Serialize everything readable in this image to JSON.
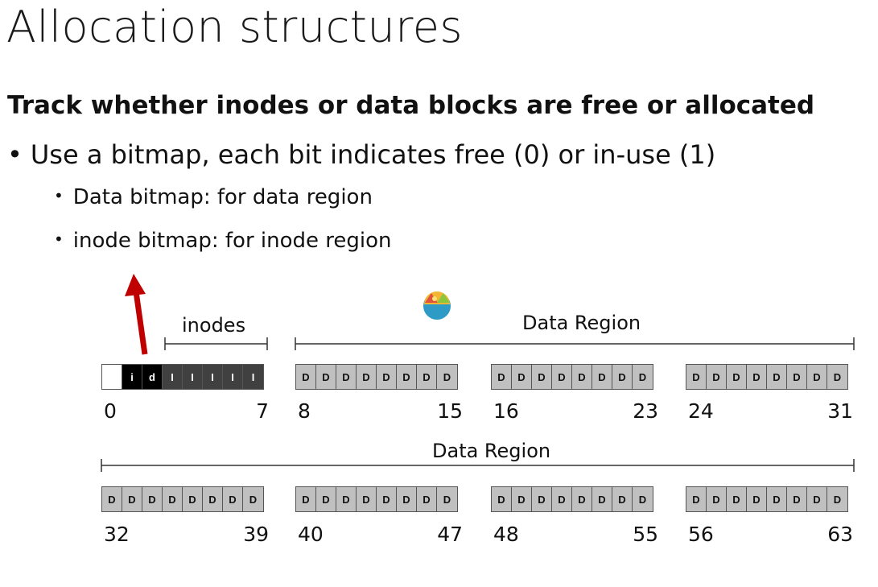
{
  "slide": {
    "title": "Allocation structures",
    "heading": "Track whether inodes or data blocks are free or allocated",
    "bullet": "Use a bitmap, each bit indicates free (0) or in-use (1)",
    "subbullets": [
      "Data bitmap: for data region",
      "inode bitmap: for inode region"
    ]
  },
  "diagram": {
    "inodes_label": "inodes",
    "data_region_label": "Data Region",
    "row1_groups": [
      {
        "cells": [
          "",
          "i",
          "d",
          "I",
          "I",
          "I",
          "I",
          "I"
        ],
        "start": "0",
        "end": "7"
      },
      {
        "cells": [
          "D",
          "D",
          "D",
          "D",
          "D",
          "D",
          "D",
          "D"
        ],
        "start": "8",
        "end": "15"
      },
      {
        "cells": [
          "D",
          "D",
          "D",
          "D",
          "D",
          "D",
          "D",
          "D"
        ],
        "start": "16",
        "end": "23"
      },
      {
        "cells": [
          "D",
          "D",
          "D",
          "D",
          "D",
          "D",
          "D",
          "D"
        ],
        "start": "24",
        "end": "31"
      }
    ],
    "row2_groups": [
      {
        "cells": [
          "D",
          "D",
          "D",
          "D",
          "D",
          "D",
          "D",
          "D"
        ],
        "start": "32",
        "end": "39"
      },
      {
        "cells": [
          "D",
          "D",
          "D",
          "D",
          "D",
          "D",
          "D",
          "D"
        ],
        "start": "40",
        "end": "47"
      },
      {
        "cells": [
          "D",
          "D",
          "D",
          "D",
          "D",
          "D",
          "D",
          "D"
        ],
        "start": "48",
        "end": "55"
      },
      {
        "cells": [
          "D",
          "D",
          "D",
          "D",
          "D",
          "D",
          "D",
          "D"
        ],
        "start": "56",
        "end": "63"
      }
    ],
    "arrow_color": "#c00000"
  }
}
